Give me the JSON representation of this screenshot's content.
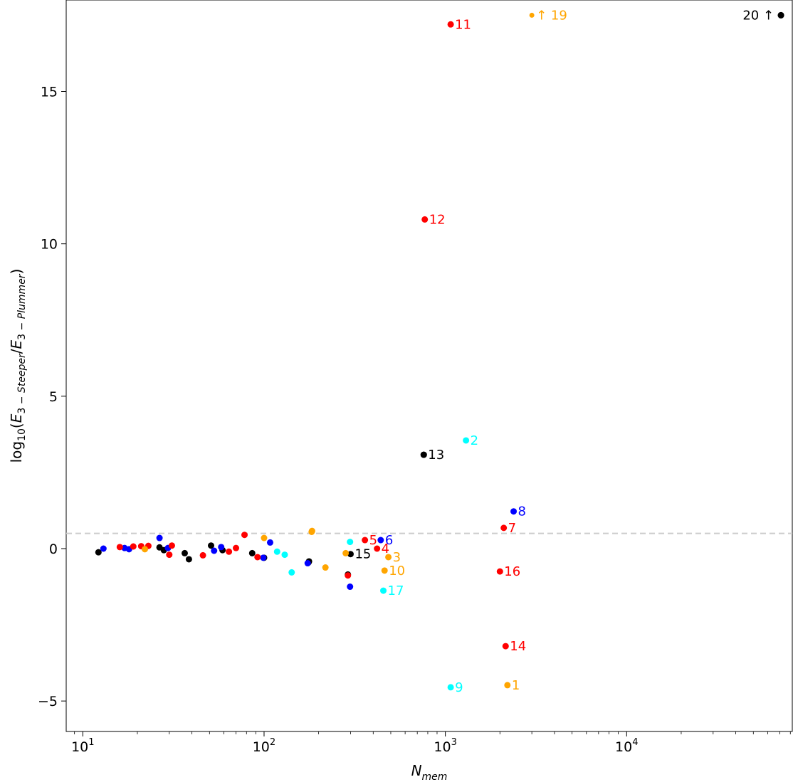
{
  "chart_data": {
    "type": "scatter",
    "title": "",
    "xlabel": "N_mem",
    "ylabel": "log10(E_3-Steeper/E_3-Plummer)",
    "xscale": "log",
    "xlim": [
      8.1,
      82000
    ],
    "ylim": [
      -6.0,
      18.0
    ],
    "grid": false,
    "x_ticks": [
      {
        "value": 10,
        "base": "10",
        "exp": "1"
      },
      {
        "value": 100,
        "base": "10",
        "exp": "2"
      },
      {
        "value": 1000,
        "base": "10",
        "exp": "3"
      },
      {
        "value": 10000,
        "base": "10",
        "exp": "4"
      }
    ],
    "y_ticks": [
      {
        "value": -5,
        "label": "−5"
      },
      {
        "value": 0,
        "label": "0"
      },
      {
        "value": 5,
        "label": "5"
      },
      {
        "value": 10,
        "label": "10"
      },
      {
        "value": 15,
        "label": "15"
      }
    ],
    "reference_line": {
      "y": 0.5,
      "color": "#cccccc",
      "style": "dashed"
    },
    "colors": {
      "red": "#ff0000",
      "blue": "#0000ff",
      "black": "#000000",
      "orange": "#ffa500",
      "cyan": "#00ffff"
    },
    "series": [
      {
        "color": "#000000",
        "points": [
          {
            "x": 12.2,
            "y": -0.12
          },
          {
            "x": 26.5,
            "y": 0.04
          },
          {
            "x": 28,
            "y": -0.05
          },
          {
            "x": 36.5,
            "y": -0.15
          },
          {
            "x": 38.5,
            "y": -0.35
          },
          {
            "x": 51,
            "y": 0.1
          },
          {
            "x": 59,
            "y": -0.05
          },
          {
            "x": 86,
            "y": -0.15
          },
          {
            "x": 100,
            "y": -0.3
          },
          {
            "x": 176,
            "y": -0.45
          },
          {
            "x": 177,
            "y": -0.42
          },
          {
            "x": 290,
            "y": -0.85
          },
          {
            "x": 760,
            "y": 3.08
          },
          {
            "x": 71000,
            "y": 17.5
          },
          {
            "x": 300,
            "y": -0.18,
            "label": "15"
          },
          {
            "x": 760,
            "y": 3.08,
            "label": "13"
          },
          {
            "x": 71000,
            "y": 17.5,
            "label": "20 ↑",
            "label_side": "left"
          }
        ]
      },
      {
        "color": "#0000ff",
        "points": [
          {
            "x": 13,
            "y": 0.0
          },
          {
            "x": 17,
            "y": 0.02
          },
          {
            "x": 18,
            "y": -0.02
          },
          {
            "x": 26.5,
            "y": 0.35
          },
          {
            "x": 29.5,
            "y": 0.02
          },
          {
            "x": 53,
            "y": -0.07
          },
          {
            "x": 58,
            "y": 0.05
          },
          {
            "x": 99,
            "y": -0.3
          },
          {
            "x": 108,
            "y": 0.2
          },
          {
            "x": 174,
            "y": -0.48
          },
          {
            "x": 298,
            "y": -1.25
          },
          {
            "x": 440,
            "y": 0.28,
            "label": "6"
          },
          {
            "x": 2380,
            "y": 1.22,
            "label": "8"
          }
        ]
      },
      {
        "color": "#ff0000",
        "points": [
          {
            "x": 16,
            "y": 0.05
          },
          {
            "x": 19,
            "y": 0.07
          },
          {
            "x": 21,
            "y": 0.08
          },
          {
            "x": 23,
            "y": 0.09
          },
          {
            "x": 30,
            "y": -0.2
          },
          {
            "x": 31,
            "y": 0.1
          },
          {
            "x": 46,
            "y": -0.22
          },
          {
            "x": 64,
            "y": -0.1
          },
          {
            "x": 70,
            "y": 0.02
          },
          {
            "x": 78,
            "y": 0.45
          },
          {
            "x": 92,
            "y": -0.28
          },
          {
            "x": 290,
            "y": -0.88
          },
          {
            "x": 360,
            "y": 0.28,
            "label": "5"
          },
          {
            "x": 420,
            "y": 0.0,
            "label": "4"
          },
          {
            "x": 2100,
            "y": 0.68,
            "label": "7"
          },
          {
            "x": 2000,
            "y": -0.75,
            "label": "16"
          },
          {
            "x": 2150,
            "y": -3.2,
            "label": "14"
          },
          {
            "x": 770,
            "y": 10.8,
            "label": "12"
          },
          {
            "x": 1070,
            "y": 17.2,
            "label": "11"
          }
        ]
      },
      {
        "color": "#ffa500",
        "points": [
          {
            "x": 22,
            "y": -0.02
          },
          {
            "x": 100,
            "y": 0.35
          },
          {
            "x": 183,
            "y": 0.55
          },
          {
            "x": 184,
            "y": 0.58
          },
          {
            "x": 218,
            "y": -0.62
          },
          {
            "x": 282,
            "y": -0.15
          },
          {
            "x": 485,
            "y": -0.28,
            "label": "3"
          },
          {
            "x": 462,
            "y": -0.72,
            "label": "10"
          },
          {
            "x": 2200,
            "y": -4.48,
            "label": "1"
          },
          {
            "x": 3000,
            "y": 17.5,
            "label": "↑ 19",
            "small": true
          }
        ]
      },
      {
        "color": "#00ffff",
        "points": [
          {
            "x": 118,
            "y": -0.1
          },
          {
            "x": 130,
            "y": -0.2
          },
          {
            "x": 142,
            "y": -0.78
          },
          {
            "x": 298,
            "y": 0.22
          },
          {
            "x": 455,
            "y": -1.38,
            "label": "17"
          },
          {
            "x": 1300,
            "y": 3.55,
            "label": "2"
          },
          {
            "x": 1070,
            "y": -4.55,
            "label": "9"
          }
        ]
      }
    ]
  }
}
